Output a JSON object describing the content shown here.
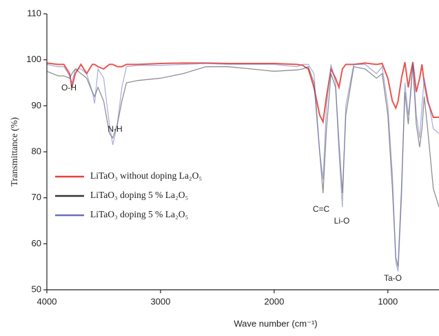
{
  "chart_data": {
    "type": "line",
    "xlabel": "Wave number (cm⁻¹)",
    "ylabel": "Transmittance (%)",
    "xlim": [
      4000,
      550
    ],
    "xticks": [
      4000,
      3000,
      2000,
      1000
    ],
    "ylim": [
      50,
      110
    ],
    "yticks": [
      50,
      60,
      70,
      80,
      90,
      100,
      110
    ],
    "grid": false,
    "legend": "middle-left",
    "annotations": [
      "O-H",
      "N-H",
      "C=C",
      "Li-O",
      "Ta-O"
    ],
    "x": [
      4000,
      3900,
      3850,
      3800,
      3780,
      3750,
      3700,
      3650,
      3600,
      3580,
      3550,
      3500,
      3450,
      3420,
      3380,
      3340,
      3300,
      3200,
      3000,
      2800,
      2600,
      2400,
      2200,
      2000,
      1800,
      1750,
      1700,
      1650,
      1600,
      1570,
      1540,
      1500,
      1460,
      1430,
      1400,
      1370,
      1300,
      1200,
      1100,
      1050,
      1000,
      960,
      930,
      910,
      880,
      850,
      820,
      800,
      780,
      750,
      720,
      700,
      680,
      650,
      600,
      550
    ],
    "series": [
      {
        "name": "LiTaO₃ without  doping La₂O₅",
        "color": "#e8413c",
        "values": [
          99.3,
          99,
          99,
          97,
          94,
          97,
          99,
          97,
          99,
          99,
          98.5,
          98,
          99,
          99,
          98.5,
          98.5,
          99,
          99,
          99.2,
          99.3,
          99.3,
          99.2,
          99.2,
          99.2,
          99,
          98.8,
          98,
          94,
          88,
          86.5,
          92,
          98,
          96,
          94,
          98,
          99,
          99,
          99.3,
          99,
          99.2,
          96,
          91,
          89.5,
          91,
          96,
          99.5,
          94,
          97,
          99.5,
          93,
          96,
          99,
          95,
          91,
          87.5,
          87.5
        ]
      },
      {
        "name": "LiTaO₃ doping 5 % La₂O₅",
        "color": "#333333",
        "values": [
          97.5,
          96.5,
          96.5,
          96,
          97,
          98,
          97,
          96,
          93,
          92,
          94,
          91,
          84,
          83,
          86,
          91,
          95,
          95.5,
          96,
          97,
          98.5,
          98.5,
          98,
          97.5,
          97.8,
          98,
          98.5,
          95,
          80,
          71,
          85,
          97,
          94,
          82,
          71,
          88,
          98.5,
          98,
          96,
          97,
          88,
          72,
          57,
          55,
          72,
          93,
          86,
          93,
          99,
          86,
          81,
          85,
          92,
          85,
          72,
          68
        ]
      },
      {
        "name": "LiTaO₃ doping 5 % La₂O₅",
        "color": "#6a6fc0",
        "values": [
          99,
          98.5,
          98.5,
          96.5,
          95,
          98,
          98,
          97,
          93,
          90.5,
          98,
          96,
          86,
          81.5,
          86,
          94,
          98.5,
          98.8,
          98.8,
          99,
          99.2,
          99,
          99,
          99,
          98.5,
          99,
          99,
          97,
          80,
          74,
          90,
          99,
          95,
          80,
          68,
          90,
          99,
          99,
          97,
          98.5,
          90,
          75,
          56,
          54,
          70,
          95,
          88,
          92,
          99.5,
          88,
          83,
          90,
          96,
          92,
          85,
          84
        ]
      }
    ]
  }
}
